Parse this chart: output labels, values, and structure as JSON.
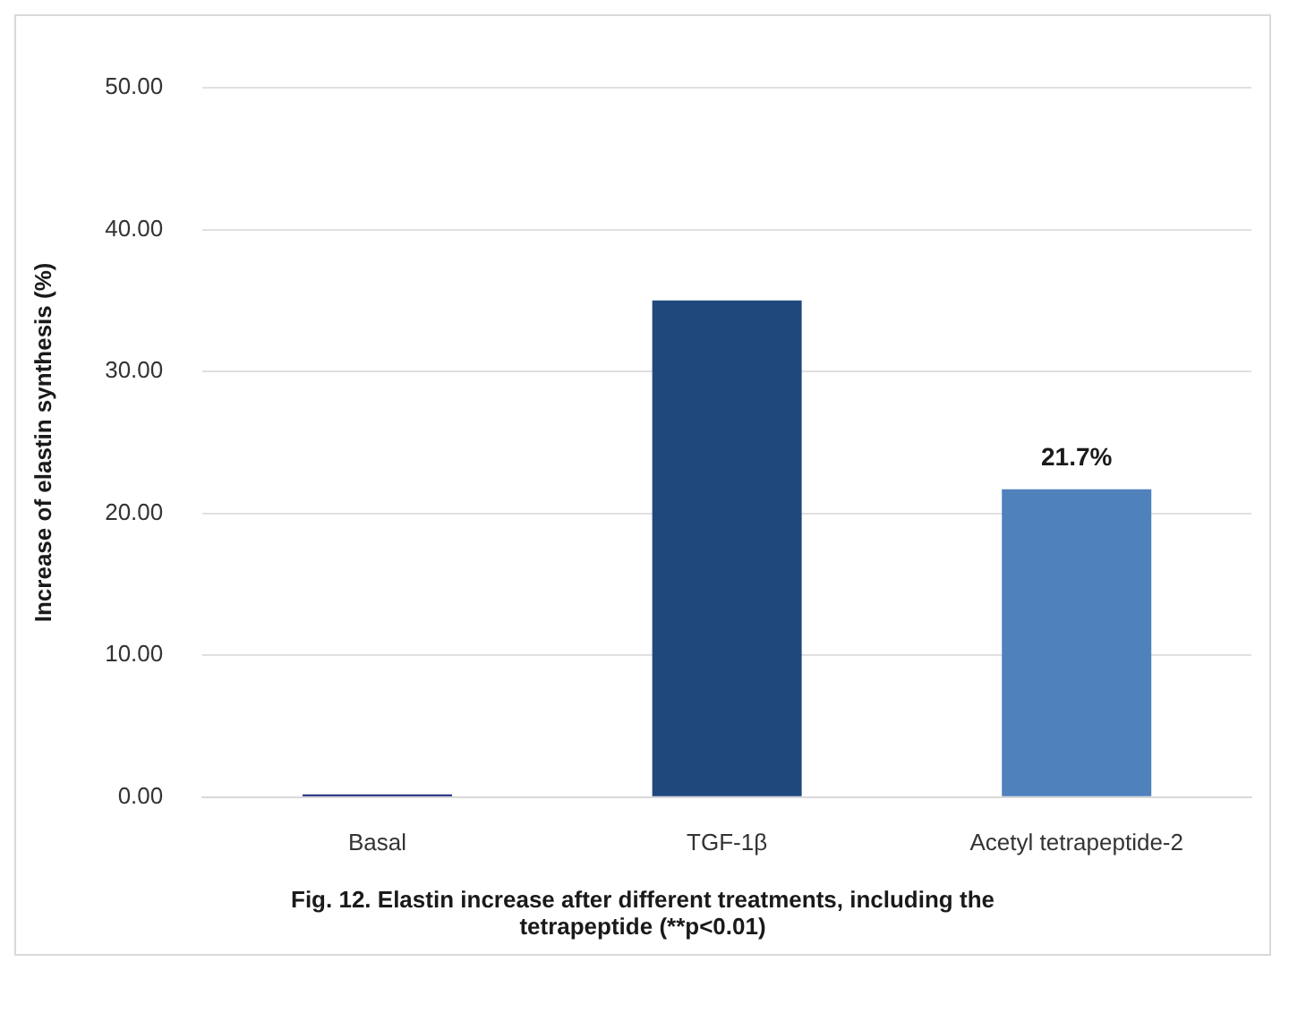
{
  "chart_data": {
    "type": "bar",
    "ylabel": "Increase of elastin synthesis (%)",
    "categories": [
      "Basal",
      "TGF-1β",
      "Acetyl tetrapeptide-2"
    ],
    "values": [
      0.2,
      35.0,
      21.7
    ],
    "colors": [
      "#1a237e",
      "#1f497d",
      "#4f81bd"
    ],
    "value_labels": [
      null,
      null,
      "21.7%"
    ],
    "ylim": [
      0,
      50
    ],
    "yticks": [
      {
        "value": 0,
        "label": "0.00"
      },
      {
        "value": 10,
        "label": "10.00"
      },
      {
        "value": 20,
        "label": "20.00"
      },
      {
        "value": 30,
        "label": "30.00"
      },
      {
        "value": 40,
        "label": "40.00"
      },
      {
        "value": 50,
        "label": "50.00"
      }
    ],
    "grid": "y",
    "annotations": [
      "Fig. 12. Elastin increase after different treatments, including the tetrapeptide (**p<0.01)"
    ]
  }
}
